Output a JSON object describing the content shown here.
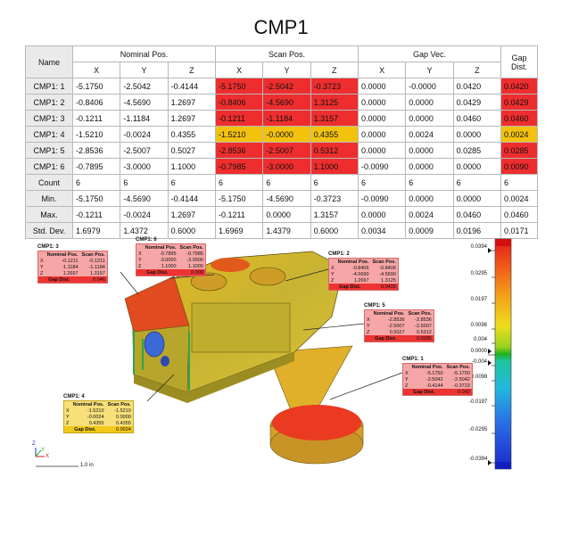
{
  "title": "CMP1",
  "table": {
    "name_header": "Name",
    "groups": [
      "Nominal Pos.",
      "Scan Pos.",
      "Gap Vec.",
      "Gap Dist."
    ],
    "sub_headers": [
      "X",
      "Y",
      "Z",
      "X",
      "Y",
      "Z",
      "X",
      "Y",
      "Z"
    ],
    "rows": [
      {
        "name": "CMP1: 1",
        "cells": [
          "-5.1750",
          "-2.5042",
          "-0.4144",
          "-5.1750",
          "-2.5042",
          "-0.3723",
          "0.0000",
          "-0.0000",
          "0.0420",
          "0.0420"
        ],
        "hl": "red"
      },
      {
        "name": "CMP1: 2",
        "cells": [
          "-0.8406",
          "-4.5690",
          "1.2697",
          "-0.8406",
          "-4.5690",
          "1.3125",
          "0.0000",
          "0.0000",
          "0.0429",
          "0.0429"
        ],
        "hl": "red"
      },
      {
        "name": "CMP1: 3",
        "cells": [
          "-0.1211",
          "-1.1184",
          "1.2697",
          "-0.1211",
          "-1.1184",
          "1.3157",
          "0.0000",
          "0.0000",
          "0.0460",
          "0.0460"
        ],
        "hl": "red"
      },
      {
        "name": "CMP1: 4",
        "cells": [
          "-1.5210",
          "-0.0024",
          "0.4355",
          "-1.5210",
          "-0.0000",
          "0.4355",
          "0.0000",
          "0.0024",
          "0.0000",
          "0.0024"
        ],
        "hl": "yel"
      },
      {
        "name": "CMP1: 5",
        "cells": [
          "-2.8536",
          "-2.5007",
          "0.5027",
          "-2.8536",
          "-2.5007",
          "0.5312",
          "0.0000",
          "0.0000",
          "0.0285",
          "0.0285"
        ],
        "hl": "red"
      },
      {
        "name": "CMP1: 6",
        "cells": [
          "-0.7895",
          "-3.0000",
          "1.1000",
          "-0.7985",
          "-3.0000",
          "1.1000",
          "-0.0090",
          "0.0000",
          "0.0000",
          "0.0090"
        ],
        "hl": "red"
      }
    ],
    "stats": [
      {
        "name": "Count",
        "cells": [
          "6",
          "6",
          "6",
          "6",
          "6",
          "6",
          "6",
          "6",
          "6",
          "6"
        ]
      },
      {
        "name": "Min.",
        "cells": [
          "-5.1750",
          "-4.5690",
          "-0.4144",
          "-5.1750",
          "-4.5690",
          "-0.3723",
          "-0.0090",
          "0.0000",
          "0.0000",
          "0.0024"
        ]
      },
      {
        "name": "Max.",
        "cells": [
          "-0.1211",
          "-0.0024",
          "1.2697",
          "-0.1211",
          "0.0000",
          "1.3157",
          "0.0000",
          "0.0024",
          "0.0460",
          "0.0460"
        ]
      },
      {
        "name": "Std. Dev.",
        "cells": [
          "1.6979",
          "1.4372",
          "0.6000",
          "1.6969",
          "1.4379",
          "0.6000",
          "0.0034",
          "0.0009",
          "0.0196",
          "0.0171"
        ]
      }
    ]
  },
  "callouts": [
    {
      "title": "CMP1: 3",
      "nom": [
        "-0.1211",
        "-1.1184",
        "1.2697"
      ],
      "scan": [
        "-0.1211",
        "-1.1184",
        "1.3157"
      ],
      "gap": "0.046",
      "color": "red"
    },
    {
      "title": "CMP1: 6",
      "nom": [
        "-0.7895",
        "-3.0000",
        "1.1000"
      ],
      "scan": [
        "-0.7985",
        "-3.0000",
        "1.1000"
      ],
      "gap": "0.009",
      "color": "red"
    },
    {
      "title": "CMP1: 2",
      "nom": [
        "-0.8406",
        "-4.5690",
        "1.2697"
      ],
      "scan": [
        "-0.8406",
        "-4.5690",
        "1.3125"
      ],
      "gap": "0.0429",
      "color": "red"
    },
    {
      "title": "CMP1: 5",
      "nom": [
        "-2.8536",
        "-2.5007",
        "0.5027"
      ],
      "scan": [
        "-2.8536",
        "-2.5007",
        "0.5312"
      ],
      "gap": "0.0285",
      "color": "red"
    },
    {
      "title": "CMP1: 1",
      "nom": [
        "-5.1750",
        "-2.5042",
        "-0.4144"
      ],
      "scan": [
        "-5.1750",
        "-2.5042",
        "-0.3723"
      ],
      "gap": "0.042",
      "color": "red"
    },
    {
      "title": "CMP1: 4",
      "nom": [
        "-1.5210",
        "-0.0024",
        "0.4355"
      ],
      "scan": [
        "-1.5210",
        "0.0000",
        "0.4355"
      ],
      "gap": "0.0024",
      "color": "yel"
    }
  ],
  "callout_labels": {
    "nominal": "Nominal Pos.",
    "scan": "Scan Pos.",
    "gap": "Gap Dist.",
    "x": "X",
    "y": "Y",
    "z": "Z"
  },
  "colorbar": {
    "ticks": [
      "0.0394",
      "0.0295",
      "0.0197",
      "0.0098",
      "0.004",
      "0.0000",
      "-0.004",
      "-0.0098",
      "-0.0197",
      "-0.0295",
      "-0.0394"
    ]
  },
  "scale_label": "1.0 in",
  "axis_labels": {
    "z": "Z",
    "y": "Y",
    "x": "X"
  }
}
